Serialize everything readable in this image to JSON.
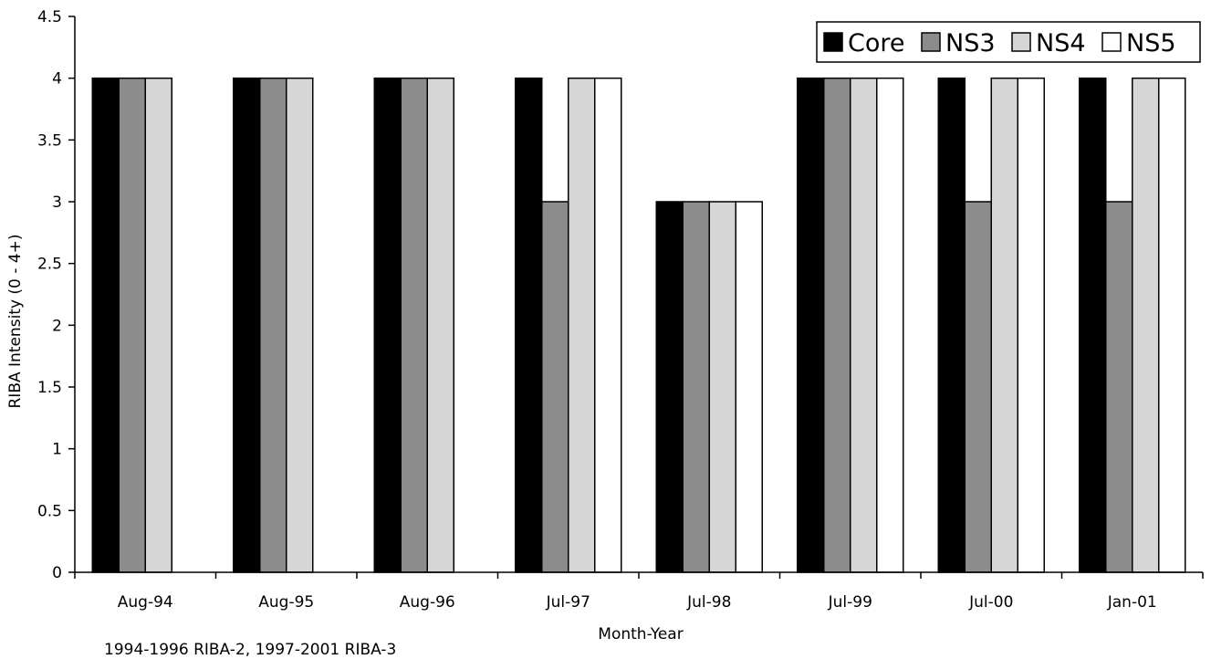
{
  "chart_data": {
    "type": "bar",
    "title": "",
    "xlabel": "Month-Year",
    "ylabel": "RIBA Intensity (0 - 4+)",
    "ylim": [
      0,
      4.5
    ],
    "yticks": [
      "0",
      "0.5",
      "1",
      "1.5",
      "2",
      "2.5",
      "3",
      "3.5",
      "4",
      "4.5"
    ],
    "categories": [
      "Aug-94",
      "Aug-95",
      "Aug-96",
      "Jul-97",
      "Jul-98",
      "Jul-99",
      "Jul-00",
      "Jan-01"
    ],
    "series": [
      {
        "name": "Core",
        "color": "#000000",
        "values": [
          4,
          4,
          4,
          4,
          3,
          4,
          4,
          4
        ]
      },
      {
        "name": "NS3",
        "color": "#8c8c8c",
        "values": [
          4,
          4,
          4,
          3,
          3,
          4,
          3,
          3
        ]
      },
      {
        "name": "NS4",
        "color": "#d6d6d6",
        "values": [
          4,
          4,
          4,
          4,
          3,
          4,
          4,
          4
        ]
      },
      {
        "name": "NS5",
        "color": "#ffffff",
        "values": [
          null,
          null,
          null,
          4,
          3,
          4,
          4,
          4
        ]
      }
    ],
    "legend_position": "top-right",
    "grid": false,
    "annotation": "1994-1996 RIBA-2,  1997-2001 RIBA-3"
  }
}
